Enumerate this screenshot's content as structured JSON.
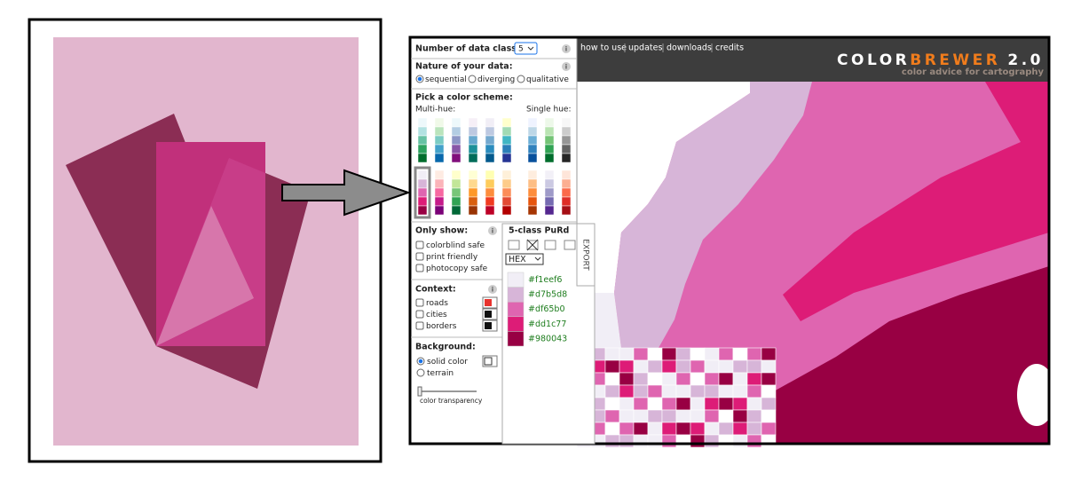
{
  "sidebar": {
    "data_classes": {
      "label": "Number of data classes:",
      "value": 5
    },
    "info": "i",
    "nature": {
      "label": "Nature of your data:",
      "options": [
        "sequential",
        "diverging",
        "qualitative"
      ]
    },
    "scheme": {
      "label": "Pick a color scheme:",
      "multi_hue": "Multi-hue:",
      "single_hue": "Single hue:",
      "multi_rows": [
        [
          [
            "#edf8fb",
            "#b2e2e2",
            "#66c2a4",
            "#2ca25f",
            "#006d2c"
          ],
          [
            "#f0f9e8",
            "#bae4bc",
            "#7bccc4",
            "#43a2ca",
            "#0868ac"
          ],
          [
            "#edf8fb",
            "#b3cde3",
            "#8c96c6",
            "#8856a7",
            "#810f7c"
          ],
          [
            "#f6eff7",
            "#bdc9e1",
            "#67a9cf",
            "#1c9099",
            "#016c59"
          ],
          [
            "#f1eef6",
            "#bdc9e1",
            "#74a9cf",
            "#2b8cbe",
            "#045a8d"
          ],
          [
            "#ffffcc",
            "#a1dab4",
            "#41b6c4",
            "#2c7fb8",
            "#253494"
          ]
        ],
        [
          [
            "#f1eef6",
            "#d7b5d8",
            "#df65b0",
            "#dd1c77",
            "#980043"
          ],
          [
            "#feebe2",
            "#fbb4b9",
            "#f768a1",
            "#c51b8a",
            "#7a0177"
          ],
          [
            "#ffffcc",
            "#c2e699",
            "#78c679",
            "#31a354",
            "#006837"
          ],
          [
            "#ffffd4",
            "#fed98e",
            "#fe9929",
            "#d95f0e",
            "#993404"
          ],
          [
            "#ffffb2",
            "#fecc5c",
            "#fd8d3c",
            "#f03b20",
            "#bd0026"
          ],
          [
            "#fef0d9",
            "#fdcc8a",
            "#fc8d59",
            "#e34a33",
            "#b30000"
          ]
        ]
      ],
      "single_rows": [
        [
          [
            "#eff3ff",
            "#bdd7e7",
            "#6baed6",
            "#3182bd",
            "#08519c"
          ],
          [
            "#edf8e9",
            "#bae4b3",
            "#74c476",
            "#31a354",
            "#006d2c"
          ],
          [
            "#f7f7f7",
            "#cccccc",
            "#969696",
            "#636363",
            "#252525"
          ]
        ],
        [
          [
            "#feedde",
            "#fdbe85",
            "#fd8d3c",
            "#e6550d",
            "#a63603"
          ],
          [
            "#f2f0f7",
            "#cbc9e2",
            "#9e9ac8",
            "#756bb1",
            "#54278f"
          ],
          [
            "#fee5d9",
            "#fcae91",
            "#fb6a4a",
            "#de2d26",
            "#a50f15"
          ]
        ]
      ]
    },
    "only_show": {
      "label": "Only show:",
      "options": [
        "colorblind safe",
        "print friendly",
        "photocopy safe"
      ]
    },
    "context": {
      "label": "Context:",
      "options": [
        "roads",
        "cities",
        "borders"
      ],
      "colors": [
        "#e8332e",
        "#111111",
        "#111111"
      ]
    },
    "background": {
      "label": "Background:",
      "options": [
        "solid color",
        "terrain"
      ],
      "transparency": "color transparency"
    }
  },
  "palette": {
    "title": "5-class PuRd",
    "format": "HEX",
    "export": "EXPORT",
    "colors": [
      "#f1eef6",
      "#d7b5d8",
      "#df65b0",
      "#dd1c77",
      "#980043"
    ]
  },
  "nav": {
    "links": [
      "how to use",
      "updates",
      "downloads",
      "credits"
    ]
  },
  "brand": {
    "color": "COLOR",
    "brewer": "BREWER",
    "version": "2.0",
    "tagline": "color advice for cartography"
  }
}
